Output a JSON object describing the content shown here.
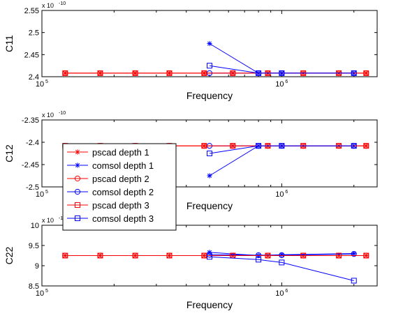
{
  "chart_data": [
    {
      "type": "line",
      "xscale": "log",
      "xlim": [
        100000,
        2500000
      ],
      "ylim": [
        2.4e-10,
        2.55e-10
      ],
      "yticks": [
        2.4e-10,
        2.45e-10,
        2.5e-10,
        2.55e-10
      ],
      "yticklabels": [
        "2.4",
        "2.45",
        "2.5",
        "2.55"
      ],
      "yexponent": "x 10",
      "yexponent_power": "-10",
      "xticks": [
        100000,
        1000000
      ],
      "xticklabels_base": [
        "10",
        "10"
      ],
      "xticklabels_exp": [
        "5",
        "6"
      ],
      "xlabel": "Frequency",
      "ylabel": "C11",
      "series": [
        {
          "name": "pscad depth 1",
          "color": "#ff0000",
          "marker": "star",
          "x": [
            125000,
            175000,
            245000,
            340000,
            475000,
            625000,
            875000,
            1230000,
            1730000,
            2250000
          ],
          "y": [
            2.408e-10,
            2.408e-10,
            2.408e-10,
            2.408e-10,
            2.408e-10,
            2.408e-10,
            2.408e-10,
            2.408e-10,
            2.408e-10,
            2.408e-10
          ]
        },
        {
          "name": "comsol depth 1",
          "color": "#0000ff",
          "marker": "star",
          "x": [
            500000,
            800000,
            1000000,
            2000000
          ],
          "y": [
            2.475e-10,
            2.408e-10,
            2.408e-10,
            2.408e-10
          ]
        },
        {
          "name": "pscad depth 2",
          "color": "#ff0000",
          "marker": "circle",
          "x": [
            125000,
            175000,
            245000,
            340000,
            475000,
            625000,
            875000,
            1230000,
            1730000,
            2250000
          ],
          "y": [
            2.408e-10,
            2.408e-10,
            2.408e-10,
            2.408e-10,
            2.408e-10,
            2.408e-10,
            2.408e-10,
            2.408e-10,
            2.408e-10,
            2.408e-10
          ]
        },
        {
          "name": "comsol depth 2",
          "color": "#0000ff",
          "marker": "circle",
          "x": [
            500000,
            800000,
            1000000,
            2000000
          ],
          "y": [
            2.408e-10,
            2.408e-10,
            2.408e-10,
            2.408e-10
          ]
        },
        {
          "name": "pscad depth 3",
          "color": "#ff0000",
          "marker": "square",
          "x": [
            125000,
            175000,
            245000,
            340000,
            475000,
            625000,
            875000,
            1230000,
            1730000,
            2250000
          ],
          "y": [
            2.408e-10,
            2.408e-10,
            2.408e-10,
            2.408e-10,
            2.408e-10,
            2.408e-10,
            2.408e-10,
            2.408e-10,
            2.408e-10,
            2.408e-10
          ]
        },
        {
          "name": "comsol depth 3",
          "color": "#0000ff",
          "marker": "square",
          "x": [
            500000,
            800000,
            1000000,
            2000000
          ],
          "y": [
            2.425e-10,
            2.408e-10,
            2.408e-10,
            2.408e-10
          ]
        }
      ]
    },
    {
      "type": "line",
      "xscale": "log",
      "xlim": [
        100000,
        2500000
      ],
      "ylim": [
        -2.5e-10,
        -2.35e-10
      ],
      "yticks": [
        -2.5e-10,
        -2.45e-10,
        -2.4e-10,
        -2.35e-10
      ],
      "yticklabels": [
        "-2.5",
        "-2.45",
        "-2.4",
        "-2.35"
      ],
      "yexponent": "x 10",
      "yexponent_power": "-10",
      "xticks": [
        100000,
        1000000
      ],
      "xticklabels_base": [
        "10",
        "10"
      ],
      "xticklabels_exp": [
        "5",
        "6"
      ],
      "xlabel": "Frequency",
      "ylabel": "C12",
      "series": [
        {
          "name": "pscad depth 1",
          "color": "#ff0000",
          "marker": "star",
          "x": [
            125000,
            175000,
            245000,
            340000,
            475000,
            625000,
            875000,
            1230000,
            1730000,
            2250000
          ],
          "y": [
            -2.408e-10,
            -2.408e-10,
            -2.408e-10,
            -2.408e-10,
            -2.408e-10,
            -2.408e-10,
            -2.408e-10,
            -2.408e-10,
            -2.408e-10,
            -2.408e-10
          ]
        },
        {
          "name": "comsol depth 1",
          "color": "#0000ff",
          "marker": "star",
          "x": [
            500000,
            800000,
            1000000,
            2000000
          ],
          "y": [
            -2.475e-10,
            -2.408e-10,
            -2.408e-10,
            -2.408e-10
          ]
        },
        {
          "name": "pscad depth 2",
          "color": "#ff0000",
          "marker": "circle",
          "x": [
            125000,
            175000,
            245000,
            340000,
            475000,
            625000,
            875000,
            1230000,
            1730000,
            2250000
          ],
          "y": [
            -2.408e-10,
            -2.408e-10,
            -2.408e-10,
            -2.408e-10,
            -2.408e-10,
            -2.408e-10,
            -2.408e-10,
            -2.408e-10,
            -2.408e-10,
            -2.408e-10
          ]
        },
        {
          "name": "comsol depth 2",
          "color": "#0000ff",
          "marker": "circle",
          "x": [
            500000,
            800000,
            1000000,
            2000000
          ],
          "y": [
            -2.408e-10,
            -2.408e-10,
            -2.408e-10,
            -2.408e-10
          ]
        },
        {
          "name": "pscad depth 3",
          "color": "#ff0000",
          "marker": "square",
          "x": [
            125000,
            175000,
            245000,
            340000,
            475000,
            625000,
            875000,
            1230000,
            1730000,
            2250000
          ],
          "y": [
            -2.408e-10,
            -2.408e-10,
            -2.408e-10,
            -2.408e-10,
            -2.408e-10,
            -2.408e-10,
            -2.408e-10,
            -2.408e-10,
            -2.408e-10,
            -2.408e-10
          ]
        },
        {
          "name": "comsol depth 3",
          "color": "#0000ff",
          "marker": "square",
          "x": [
            500000,
            800000,
            1000000,
            2000000
          ],
          "y": [
            -2.425e-10,
            -2.408e-10,
            -2.408e-10,
            -2.408e-10
          ]
        }
      ]
    },
    {
      "type": "line",
      "xscale": "log",
      "xlim": [
        100000,
        2500000
      ],
      "ylim": [
        8.5e-11,
        1e-10
      ],
      "yticks": [
        8.5e-11,
        9e-11,
        9.5e-11,
        1e-10
      ],
      "yticklabels": [
        "8.5",
        "9",
        "9.5",
        "10"
      ],
      "yexponent": "x 10",
      "yexponent_power": "-11",
      "xticks": [
        100000,
        1000000
      ],
      "xticklabels_base": [
        "10",
        "10"
      ],
      "xticklabels_exp": [
        "5",
        "6"
      ],
      "xlabel": "Frequency",
      "ylabel": "C22",
      "series": [
        {
          "name": "pscad depth 1",
          "color": "#ff0000",
          "marker": "star",
          "x": [
            125000,
            175000,
            245000,
            340000,
            475000,
            625000,
            875000,
            1230000,
            1730000,
            2250000
          ],
          "y": [
            9.25e-11,
            9.25e-11,
            9.25e-11,
            9.25e-11,
            9.25e-11,
            9.25e-11,
            9.25e-11,
            9.25e-11,
            9.25e-11,
            9.25e-11
          ]
        },
        {
          "name": "comsol depth 1",
          "color": "#0000ff",
          "marker": "star",
          "x": [
            500000,
            800000,
            1000000,
            2000000
          ],
          "y": [
            9.33e-11,
            9.25e-11,
            9.27e-11,
            9.3e-11
          ]
        },
        {
          "name": "pscad depth 2",
          "color": "#ff0000",
          "marker": "circle",
          "x": [
            125000,
            175000,
            245000,
            340000,
            475000,
            625000,
            875000,
            1230000,
            1730000,
            2250000
          ],
          "y": [
            9.25e-11,
            9.25e-11,
            9.25e-11,
            9.25e-11,
            9.25e-11,
            9.25e-11,
            9.25e-11,
            9.25e-11,
            9.25e-11,
            9.25e-11
          ]
        },
        {
          "name": "comsol depth 2",
          "color": "#0000ff",
          "marker": "circle",
          "x": [
            500000,
            800000,
            1000000,
            2000000
          ],
          "y": [
            9.27e-11,
            9.26e-11,
            9.26e-11,
            9.29e-11
          ]
        },
        {
          "name": "pscad depth 3",
          "color": "#ff0000",
          "marker": "square",
          "x": [
            125000,
            175000,
            245000,
            340000,
            475000,
            625000,
            875000,
            1230000,
            1730000,
            2250000
          ],
          "y": [
            9.25e-11,
            9.25e-11,
            9.25e-11,
            9.25e-11,
            9.25e-11,
            9.25e-11,
            9.25e-11,
            9.25e-11,
            9.25e-11,
            9.25e-11
          ]
        },
        {
          "name": "comsol depth 3",
          "color": "#0000ff",
          "marker": "square",
          "x": [
            500000,
            800000,
            1000000,
            2000000
          ],
          "y": [
            9.22e-11,
            9.15e-11,
            9.08e-11,
            8.63e-11
          ]
        }
      ]
    }
  ],
  "legend": {
    "placement": "overlapping middle-left",
    "entries": [
      "pscad depth 1",
      "comsol depth 1",
      "pscad depth 2",
      "comsol depth 2",
      "pscad depth 3",
      "comsol depth 3"
    ]
  }
}
